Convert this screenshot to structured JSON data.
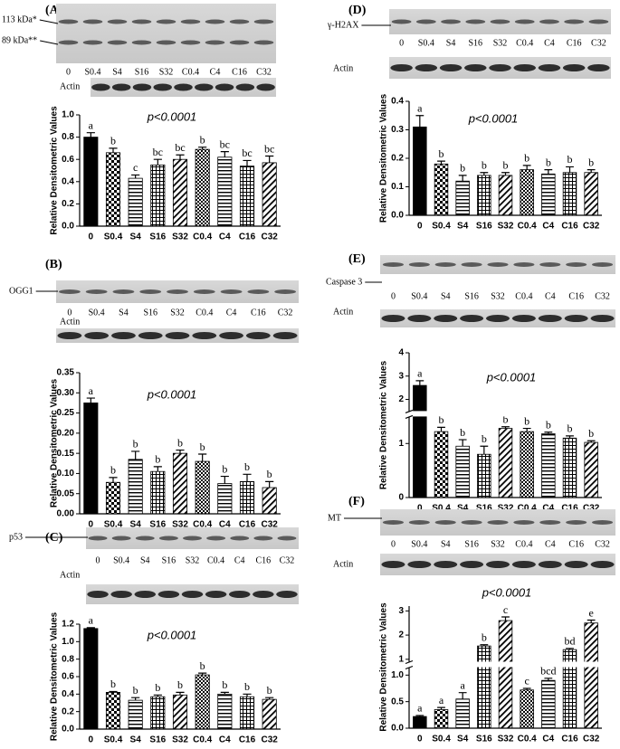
{
  "chart_data": [
    {
      "type": "bar",
      "panel": "(A)",
      "blot_labels": [
        "113 kDa*",
        "89 kDa**"
      ],
      "loading_control": "Actin",
      "ylabel": "Relative Densitometric Values",
      "annotation": "p<0.0001",
      "color": "#000000",
      "categories": [
        "0",
        "S0.4",
        "S4",
        "S16",
        "S32",
        "C0.4",
        "C4",
        "C16",
        "C32"
      ],
      "values": [
        0.8,
        0.66,
        0.43,
        0.55,
        0.6,
        0.69,
        0.62,
        0.54,
        0.57
      ],
      "errors": [
        0.04,
        0.04,
        0.03,
        0.05,
        0.04,
        0.02,
        0.05,
        0.05,
        0.06
      ],
      "significance": [
        "a",
        "b",
        "c",
        "bc",
        "bc",
        "b",
        "bc",
        "bc",
        "bc"
      ],
      "ylim": [
        0,
        1
      ],
      "yticks": [
        {
          "value": 0,
          "label": "0.0"
        },
        0.2,
        0.4,
        0.6,
        0.8,
        {
          "value": 1,
          "label": "1.0"
        }
      ]
    },
    {
      "type": "bar",
      "panel": "(B)",
      "blot_labels": [
        "OGG1"
      ],
      "loading_control": "Actin",
      "ylabel": "Relative Densitometric Values",
      "annotation": "p<0.0001",
      "color": "#000000",
      "categories": [
        "0",
        "S0.4",
        "S4",
        "S16",
        "S32",
        "C0.4",
        "C4",
        "C16",
        "C32"
      ],
      "values": [
        0.275,
        0.078,
        0.135,
        0.105,
        0.15,
        0.13,
        0.075,
        0.08,
        0.065
      ],
      "errors": [
        0.012,
        0.012,
        0.02,
        0.012,
        0.008,
        0.018,
        0.018,
        0.018,
        0.015
      ],
      "significance": [
        "a",
        "b",
        "b",
        "b",
        "b",
        "b",
        "b",
        "b",
        "b"
      ],
      "ylim": [
        0,
        0.35
      ],
      "yticks": [
        {
          "value": 0,
          "label": "0.00"
        },
        0.05,
        {
          "value": 0.1,
          "label": "0.10"
        },
        0.15,
        {
          "value": 0.2,
          "label": "0.20"
        },
        0.25,
        {
          "value": 0.3,
          "label": "0.30"
        },
        0.35
      ]
    },
    {
      "type": "bar",
      "panel": "(C)",
      "blot_labels": [
        "p53"
      ],
      "loading_control": "Actin",
      "ylabel": "Relative Densitometric Values",
      "annotation": "p<0.0001",
      "color": "#000000",
      "categories": [
        "0",
        "S0.4",
        "S4",
        "S16",
        "S32",
        "C0.4",
        "C4",
        "C16",
        "C32"
      ],
      "values": [
        1.15,
        0.42,
        0.33,
        0.37,
        0.39,
        0.62,
        0.4,
        0.37,
        0.34
      ],
      "errors": [
        0.01,
        0.01,
        0.03,
        0.02,
        0.03,
        0.02,
        0.02,
        0.03,
        0.02
      ],
      "significance": [
        "a",
        "b",
        "b",
        "b",
        "b",
        "b",
        "b",
        "b",
        "b"
      ],
      "ylim": [
        0,
        1.2
      ],
      "yticks": [
        {
          "value": 0,
          "label": "0.0"
        },
        0.2,
        0.4,
        0.6,
        0.8,
        {
          "value": 1,
          "label": "1.0"
        },
        1.2
      ]
    },
    {
      "type": "bar",
      "panel": "(D)",
      "blot_labels": [
        "γ-H2AX"
      ],
      "loading_control": "Actin",
      "ylabel": "Relative Densitometric Values",
      "annotation": "p<0.0001",
      "color": "#000000",
      "categories": [
        "0",
        "S0.4",
        "S4",
        "S16",
        "S32",
        "C0.4",
        "C4",
        "C16",
        "C32"
      ],
      "values": [
        0.31,
        0.18,
        0.12,
        0.14,
        0.14,
        0.16,
        0.145,
        0.15,
        0.15
      ],
      "errors": [
        0.04,
        0.01,
        0.02,
        0.01,
        0.01,
        0.015,
        0.015,
        0.02,
        0.01
      ],
      "significance": [
        "a",
        "b",
        "b",
        "b",
        "b",
        "b",
        "b",
        "b",
        "b"
      ],
      "ylim": [
        0,
        0.4
      ],
      "yticks": [
        {
          "value": 0,
          "label": "0.0"
        },
        0.1,
        0.2,
        0.3,
        0.4
      ]
    },
    {
      "type": "bar",
      "panel": "(E)",
      "blot_labels": [
        "Caspase 3"
      ],
      "loading_control": "Actin",
      "ylabel": "Relative Densitometric Values",
      "annotation": "p<0.0001",
      "color": "#000000",
      "categories": [
        "0",
        "S0.4",
        "S4",
        "S16",
        "S32",
        "C0.4",
        "C4",
        "C16",
        "C32"
      ],
      "values": [
        2.6,
        1.22,
        0.95,
        0.8,
        1.28,
        1.22,
        1.18,
        1.1,
        1.02
      ],
      "errors": [
        0.2,
        0.08,
        0.12,
        0.15,
        0.03,
        0.06,
        0.03,
        0.04,
        0.03
      ],
      "significance": [
        "a",
        "b",
        "b",
        "b",
        "b",
        "b",
        "b",
        "b",
        "b"
      ],
      "ylim": [
        0,
        4
      ],
      "ybreak": [
        1.5,
        1.5
      ],
      "yticks": [
        0,
        1
      ],
      "yticks_upper": [
        2,
        3,
        4
      ]
    },
    {
      "type": "bar",
      "panel": "(F)",
      "blot_labels": [
        "MT"
      ],
      "loading_control": "Actin",
      "ylabel": "Relative Densitometric Values",
      "annotation": "p<0.0001",
      "color": "#000000",
      "categories": [
        "0",
        "S0.4",
        "S4",
        "S16",
        "S32",
        "C0.4",
        "C4",
        "C16",
        "C32"
      ],
      "values": [
        0.22,
        0.35,
        0.55,
        1.55,
        2.6,
        0.72,
        0.9,
        1.4,
        2.5
      ],
      "errors": [
        0.02,
        0.04,
        0.12,
        0.05,
        0.15,
        0.03,
        0.04,
        0.05,
        0.12
      ],
      "significance": [
        "a",
        "a",
        "a",
        "b",
        "c",
        "c",
        "bcd",
        "bd",
        "e"
      ],
      "ylim": [
        0,
        3.2
      ],
      "ybreak": [
        1.15,
        0.9
      ],
      "yticks": [
        {
          "value": 0,
          "label": "0.0"
        },
        0.5,
        {
          "value": 1,
          "label": "1.0"
        }
      ],
      "yticks_upper": [
        1,
        2,
        3
      ]
    }
  ]
}
